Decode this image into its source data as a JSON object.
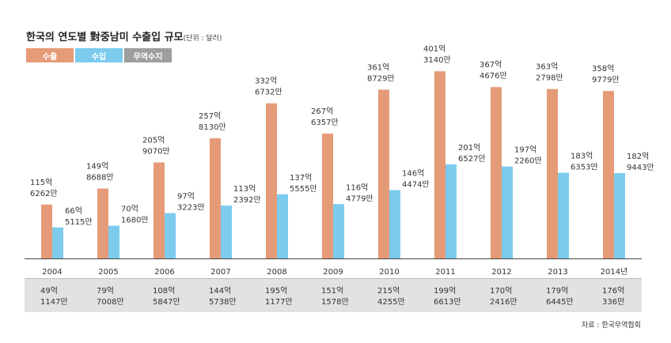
{
  "title": "한국의 연도별 對중남미 수출입 규모",
  "unit": "(단위 : 달러)",
  "legend": [
    {
      "label": "수출",
      "color": "#e59b78"
    },
    {
      "label": "수입",
      "color": "#7ccbed"
    },
    {
      "label": "무역수지",
      "color": "#9e9e9e"
    }
  ],
  "source": "자료 : 한국무역협회",
  "chart_data": {
    "type": "bar",
    "categories": [
      "2004",
      "2005",
      "2006",
      "2007",
      "2008",
      "2009",
      "2010",
      "2011",
      "2012",
      "2013",
      "2014년"
    ],
    "series": [
      {
        "name": "수출",
        "values": [
          115.6262,
          149.8688,
          205.907,
          257.813,
          332.6732,
          267.6357,
          361.8729,
          401.314,
          367.4676,
          363.2798,
          358.9779
        ],
        "labels": [
          [
            "115억",
            "6262만"
          ],
          [
            "149억",
            "8688만"
          ],
          [
            "205억",
            "9070만"
          ],
          [
            "257억",
            "8130만"
          ],
          [
            "332억",
            "6732만"
          ],
          [
            "267억",
            "6357만"
          ],
          [
            "361억",
            "8729만"
          ],
          [
            "401억",
            "3140만"
          ],
          [
            "367억",
            "4676만"
          ],
          [
            "363억",
            "2798만"
          ],
          [
            "358억",
            "9779만"
          ]
        ]
      },
      {
        "name": "수입",
        "values": [
          66.5115,
          70.168,
          97.3223,
          113.2392,
          137.5555,
          116.4779,
          146.4474,
          201.6527,
          197.226,
          183.6353,
          182.9443
        ],
        "labels": [
          [
            "66억",
            "5115만"
          ],
          [
            "70억",
            "1680만"
          ],
          [
            "97억",
            "3223만"
          ],
          [
            "113억",
            "2392만"
          ],
          [
            "137억",
            "5555만"
          ],
          [
            "116억",
            "4779만"
          ],
          [
            "146억",
            "4474만"
          ],
          [
            "201억",
            "6527만"
          ],
          [
            "197억",
            "2260만"
          ],
          [
            "183억",
            "6353만"
          ],
          [
            "182억",
            "9443만"
          ]
        ]
      },
      {
        "name": "무역수지",
        "values": [
          49.1147,
          79.7008,
          108.5847,
          144.5738,
          195.1177,
          151.1578,
          215.4255,
          199.6613,
          170.2416,
          179.6445,
          176.0336
        ],
        "labels": [
          [
            "49억",
            "1147만"
          ],
          [
            "79억",
            "7008만"
          ],
          [
            "108억",
            "5847만"
          ],
          [
            "144억",
            "5738만"
          ],
          [
            "195억",
            "1177만"
          ],
          [
            "151억",
            "1578만"
          ],
          [
            "215억",
            "4255만"
          ],
          [
            "199억",
            "6613만"
          ],
          [
            "170억",
            "2416만"
          ],
          [
            "179억",
            "6445만"
          ],
          [
            "176억",
            "336만"
          ]
        ]
      }
    ],
    "ylim": [
      0,
      405
    ]
  }
}
